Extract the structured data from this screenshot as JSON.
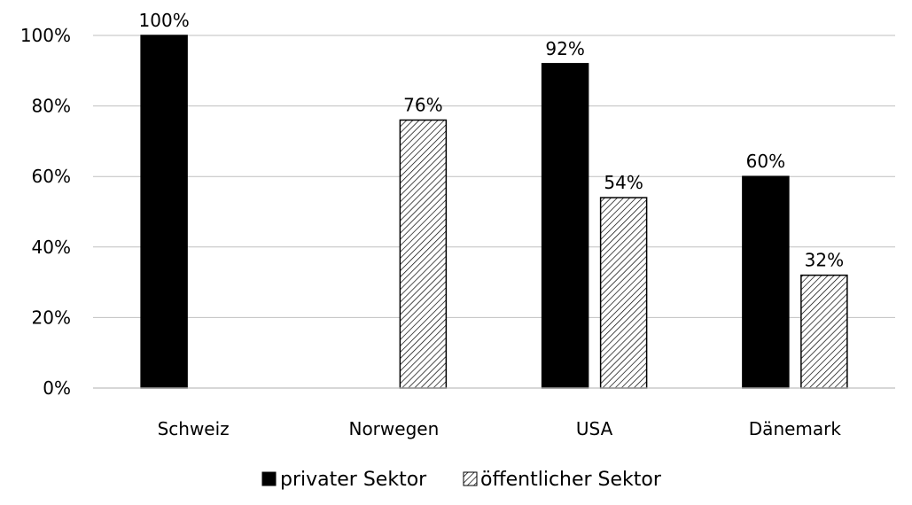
{
  "chart_data": {
    "type": "bar",
    "categories": [
      "Schweiz",
      "Norwegen",
      "USA",
      "Dänemark"
    ],
    "series": [
      {
        "name": "privater Sektor",
        "values": [
          100,
          null,
          92,
          60
        ],
        "color": "#000000",
        "pattern": "solid"
      },
      {
        "name": "öffentlicher Sektor",
        "values": [
          null,
          76,
          54,
          32
        ],
        "color": "#ffffff",
        "pattern": "diagonal-hatch"
      }
    ],
    "data_labels": [
      [
        "100%",
        "",
        "92%",
        "60%"
      ],
      [
        "",
        "76%",
        "54%",
        "32%"
      ]
    ],
    "ylim": [
      0,
      100
    ],
    "yticks": [
      0,
      20,
      40,
      60,
      80,
      100
    ],
    "ytick_labels": [
      "0%",
      "20%",
      "40%",
      "60%",
      "80%",
      "100%"
    ],
    "grid": true,
    "legend_position": "bottom",
    "title": "",
    "xlabel": "",
    "ylabel": ""
  }
}
